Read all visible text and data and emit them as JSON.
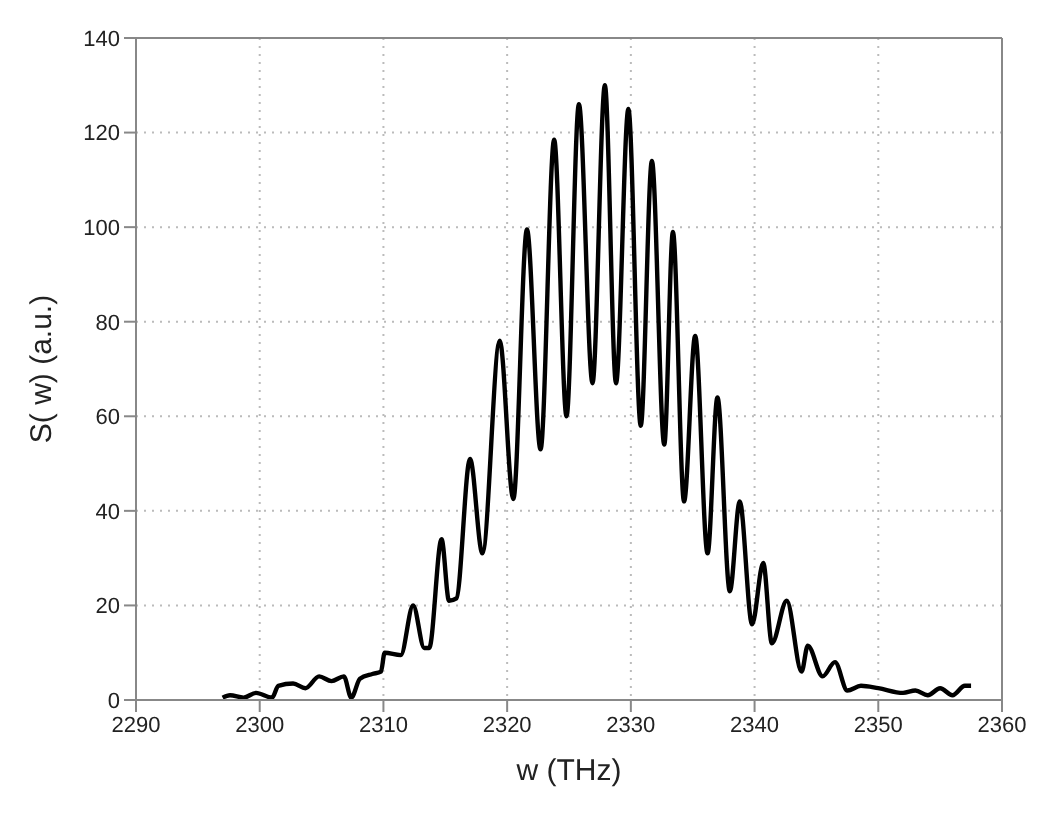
{
  "chart_data": {
    "type": "line",
    "xlabel": "w (THz)",
    "ylabel": "S( w)  (a.u.)",
    "xlim": [
      2290,
      2360
    ],
    "xticks": [
      2290,
      2300,
      2310,
      2320,
      2330,
      2340,
      2350,
      2360
    ],
    "ylim": [
      0,
      140
    ],
    "yticks": [
      0,
      20,
      40,
      60,
      80,
      100,
      120,
      140
    ],
    "grid": true,
    "marker": "none",
    "line_style": "solid",
    "series": [
      {
        "color": "#000000",
        "x": [
          2297.0,
          2297.6,
          2298.7,
          2299.7,
          2301.0,
          2301.5,
          2302.7,
          2303.7,
          2304.8,
          2305.8,
          2306.8,
          2307.4,
          2308.1,
          2309.1,
          2309.8,
          2310.1,
          2311.4,
          2312.4,
          2313.3,
          2313.7,
          2314.7,
          2315.3,
          2315.9,
          2317.0,
          2318.0,
          2319.4,
          2320.5,
          2321.6,
          2322.7,
          2323.8,
          2324.8,
          2325.8,
          2326.9,
          2327.9,
          2328.8,
          2329.8,
          2330.8,
          2331.7,
          2332.7,
          2333.4,
          2334.3,
          2335.2,
          2336.2,
          2337.0,
          2338.0,
          2338.8,
          2339.8,
          2340.7,
          2341.4,
          2342.6,
          2343.8,
          2344.3,
          2345.5,
          2346.5,
          2347.5,
          2348.6,
          2350.0,
          2352.0,
          2353.0,
          2354.0,
          2355.0,
          2356.0,
          2357.0,
          2357.5
        ],
        "values": [
          0.5,
          1,
          0.5,
          1.5,
          0.5,
          3,
          3.5,
          2.5,
          5,
          4,
          5,
          0.5,
          4.5,
          5.5,
          6,
          10,
          9.5,
          20,
          11,
          11,
          34,
          21,
          21.5,
          51,
          31,
          76,
          42.5,
          99.5,
          53,
          118.5,
          60,
          126,
          67,
          130,
          67,
          125,
          58,
          114,
          54,
          99,
          42,
          77,
          31,
          64,
          23,
          42,
          16,
          29,
          12,
          21,
          6,
          11.5,
          5,
          8,
          2,
          3,
          2.5,
          1.5,
          2,
          1,
          2.5,
          1,
          3,
          3
        ]
      }
    ]
  }
}
